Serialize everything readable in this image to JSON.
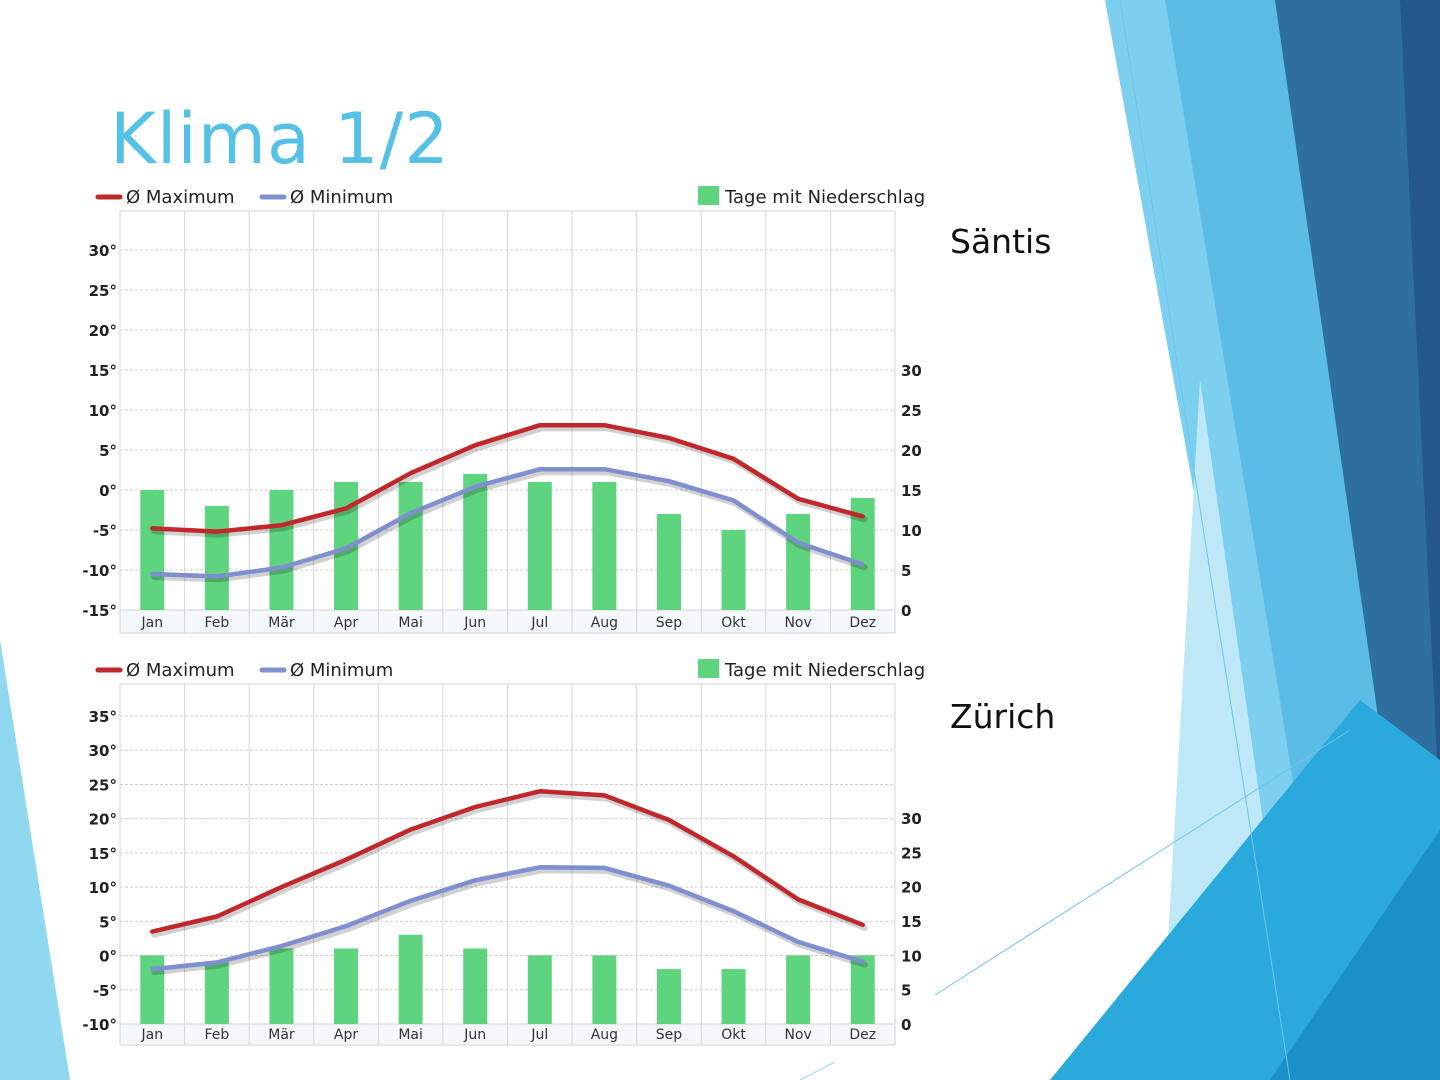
{
  "slide": {
    "title": "Klima 1/2",
    "accent_color": "#55c1e6"
  },
  "chart_data": [
    {
      "type": "bar",
      "location": "Säntis",
      "categories": [
        "Jan",
        "Feb",
        "Mär",
        "Apr",
        "Mai",
        "Jun",
        "Jul",
        "Aug",
        "Sep",
        "Okt",
        "Nov",
        "Dez"
      ],
      "series": [
        {
          "name": "Ø Maximum",
          "type": "line",
          "axis": "left",
          "color": "#c0282b",
          "values": [
            -4.8,
            -5.2,
            -4.4,
            -2.3,
            2.1,
            5.6,
            8.1,
            8.1,
            6.5,
            3.9,
            -1.1,
            -3.3
          ]
        },
        {
          "name": "Ø Minimum",
          "type": "line",
          "axis": "left",
          "color": "#7f8fd0",
          "values": [
            -10.5,
            -10.8,
            -9.7,
            -7.3,
            -2.9,
            0.4,
            2.6,
            2.6,
            1.1,
            -1.3,
            -6.6,
            -9.3
          ]
        },
        {
          "name": "Tage mit Niederschlag",
          "type": "bar",
          "axis": "right",
          "color": "#5ed47e",
          "values": [
            15,
            13,
            15,
            16,
            16,
            17,
            16,
            16,
            12,
            10,
            12,
            14
          ]
        }
      ],
      "left_axis": {
        "ylim": [
          -15,
          30
        ],
        "ticks": [
          "30°",
          "25°",
          "20°",
          "15°",
          "10°",
          "5°",
          "0°",
          "-5°",
          "-10°",
          "-15°"
        ]
      },
      "right_axis": {
        "ylim": [
          0,
          30
        ],
        "ticks": [
          "30",
          "25",
          "20",
          "15",
          "10",
          "5",
          "0"
        ]
      },
      "legend": {
        "max": "Ø Maximum",
        "min": "Ø Minimum",
        "rain": "Tage mit Niederschlag"
      }
    },
    {
      "type": "bar",
      "location": "Zürich",
      "categories": [
        "Jan",
        "Feb",
        "Mär",
        "Apr",
        "Mai",
        "Jun",
        "Jul",
        "Aug",
        "Sep",
        "Okt",
        "Nov",
        "Dez"
      ],
      "series": [
        {
          "name": "Ø Maximum",
          "type": "line",
          "axis": "left",
          "color": "#c0282b",
          "values": [
            3.5,
            5.7,
            10.0,
            14.0,
            18.4,
            21.7,
            24.0,
            23.4,
            19.8,
            14.5,
            8.2,
            4.5
          ]
        },
        {
          "name": "Ø Minimum",
          "type": "line",
          "axis": "left",
          "color": "#7f8fd0",
          "values": [
            -2.0,
            -1.0,
            1.4,
            4.3,
            8.0,
            11.0,
            12.9,
            12.8,
            10.2,
            6.5,
            2.0,
            -0.9
          ]
        },
        {
          "name": "Tage mit Niederschlag",
          "type": "bar",
          "axis": "right",
          "color": "#5ed47e",
          "values": [
            10,
            9,
            11,
            11,
            13,
            11,
            10,
            10,
            8,
            8,
            10,
            10
          ]
        }
      ],
      "left_axis": {
        "ylim": [
          -10,
          35
        ],
        "ticks": [
          "35°",
          "30°",
          "25°",
          "20°",
          "15°",
          "10°",
          "5°",
          "0°",
          "-5°",
          "-10°"
        ]
      },
      "right_axis": {
        "ylim": [
          0,
          30
        ],
        "ticks": [
          "30",
          "25",
          "20",
          "15",
          "10",
          "5",
          "0"
        ]
      },
      "legend": {
        "max": "Ø Maximum",
        "min": "Ø Minimum",
        "rain": "Tage mit Niederschlag"
      }
    }
  ]
}
